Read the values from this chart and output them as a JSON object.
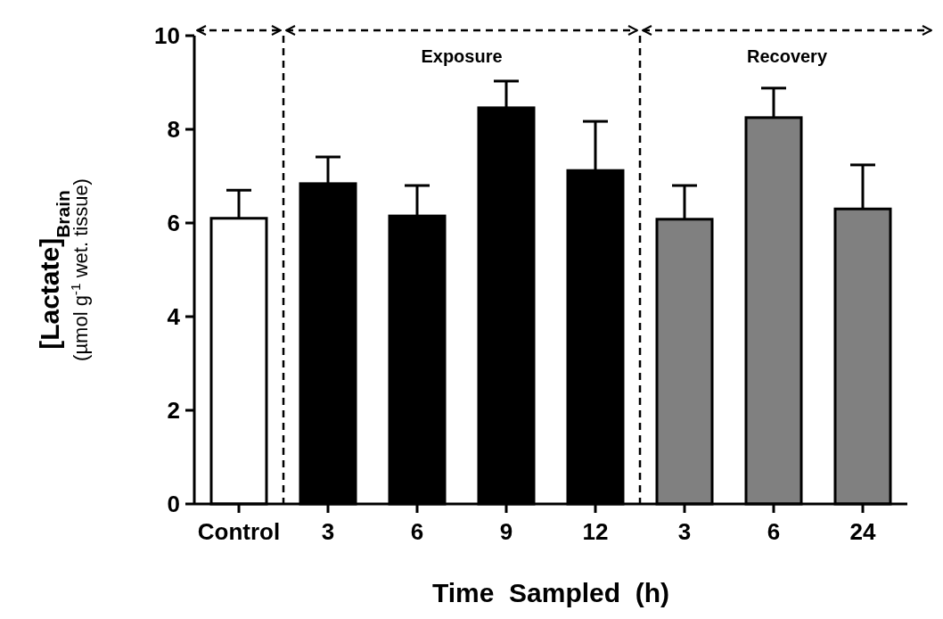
{
  "chart_data": {
    "type": "bar",
    "xlabel": "Time  Sampled  (h)",
    "ylabel": "[Lactate]$_{Brain}$\n(µmol g$^{-1}$ wet. tissue)",
    "categories": [
      "Control",
      "3",
      "6",
      "9",
      "12",
      "3",
      "6",
      "24"
    ],
    "values": [
      6.1,
      6.84,
      6.15,
      8.46,
      7.12,
      6.08,
      8.25,
      6.3
    ],
    "errors": [
      [
        6.1,
        6.7
      ],
      [
        6.84,
        7.41
      ],
      [
        6.15,
        6.8
      ],
      [
        8.46,
        9.03
      ],
      [
        7.12,
        8.17
      ],
      [
        6.08,
        6.8
      ],
      [
        8.25,
        8.88
      ],
      [
        6.3,
        7.24
      ]
    ],
    "colors": [
      "#ffffff",
      "#000000",
      "#000000",
      "#000000",
      "#000000",
      "#808080",
      "#808080",
      "#808080"
    ],
    "ylim": [
      0,
      10
    ],
    "yticks": [
      0,
      2,
      4,
      6,
      8,
      10
    ],
    "annotations": [
      "Exposure",
      "Recovery"
    ]
  }
}
